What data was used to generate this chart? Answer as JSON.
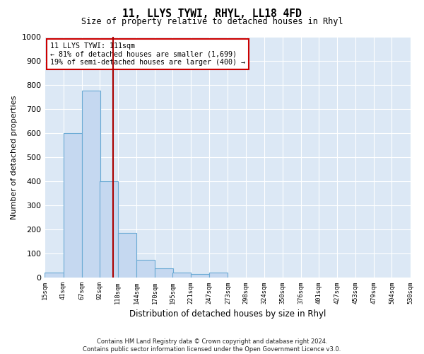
{
  "title": "11, LLYS TYWI, RHYL, LL18 4FD",
  "subtitle": "Size of property relative to detached houses in Rhyl",
  "xlabel": "Distribution of detached houses by size in Rhyl",
  "ylabel": "Number of detached properties",
  "footer_line1": "Contains HM Land Registry data © Crown copyright and database right 2024.",
  "footer_line2": "Contains public sector information licensed under the Open Government Licence v3.0.",
  "annotation_title": "11 LLYS TYWI: 111sqm",
  "annotation_line1": "← 81% of detached houses are smaller (1,699)",
  "annotation_line2": "19% of semi-detached houses are larger (400) →",
  "bar_edges": [
    15,
    41,
    67,
    92,
    118,
    144,
    170,
    195,
    221,
    247,
    273,
    298,
    324,
    350,
    376,
    401,
    427,
    453,
    479,
    504,
    530
  ],
  "bar_heights": [
    20,
    600,
    775,
    400,
    185,
    75,
    40,
    20,
    15,
    20,
    0,
    0,
    0,
    0,
    0,
    0,
    0,
    0,
    0,
    0
  ],
  "bar_color": "#c5d8f0",
  "bar_edge_color": "#6aaad4",
  "vline_color": "#aa0000",
  "vline_x": 111,
  "annotation_box_color": "#cc0000",
  "background_color": "#dce8f5",
  "ylim": [
    0,
    1000
  ],
  "xlim": [
    15,
    530
  ],
  "yticks": [
    0,
    100,
    200,
    300,
    400,
    500,
    600,
    700,
    800,
    900,
    1000
  ]
}
